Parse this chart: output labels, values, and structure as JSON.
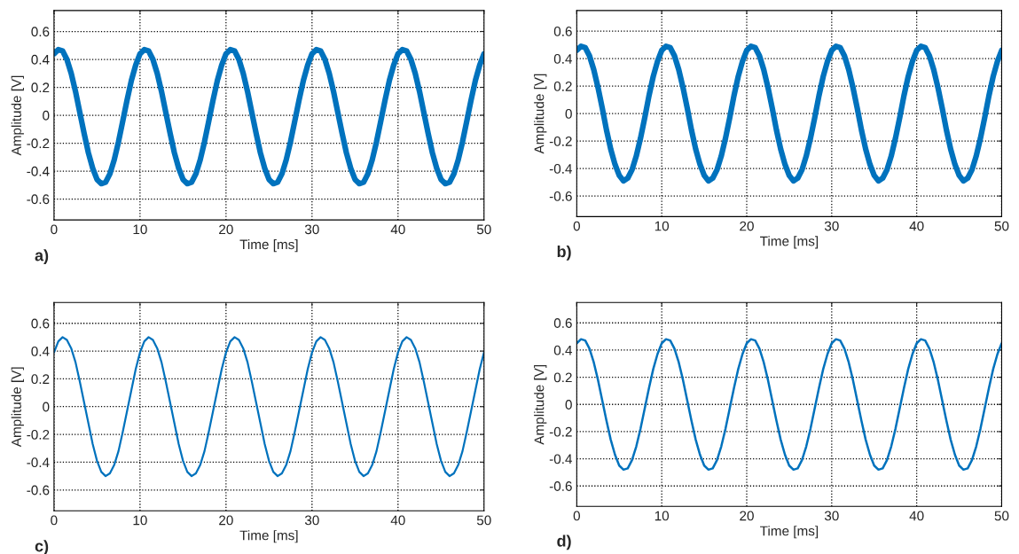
{
  "chart_data": [
    {
      "type": "line",
      "xlabel": "Time [ms]",
      "ylabel": "Amplitude [V]",
      "annotations": [
        "a)"
      ],
      "xlim": [
        0,
        50
      ],
      "ylim": [
        -0.75,
        0.75
      ],
      "xticks": [
        0,
        10,
        20,
        30,
        40,
        50
      ],
      "yticks": [
        -0.6,
        -0.4,
        -0.2,
        0,
        0.2,
        0.4,
        0.6
      ],
      "grid": true,
      "line_style": "solid",
      "x": [
        0,
        0.5,
        1,
        1.5,
        2,
        2.5,
        3,
        3.5,
        4,
        4.5,
        5,
        5.5,
        6,
        6.5,
        7,
        7.5,
        8,
        8.5,
        9,
        9.5,
        10,
        10.5,
        11,
        11.5,
        12,
        12.5,
        13,
        13.5,
        14,
        14.5,
        15,
        15.5,
        16,
        16.5,
        17,
        17.5,
        18,
        18.5,
        19,
        19.5,
        20,
        20.5,
        21,
        21.5,
        22,
        22.5,
        23,
        23.5,
        24,
        24.5,
        25,
        25.5,
        26,
        26.5,
        27,
        27.5,
        28,
        28.5,
        29,
        29.5,
        30,
        30.5,
        31,
        31.5,
        32,
        32.5,
        33,
        33.5,
        34,
        34.5,
        35,
        35.5,
        36,
        36.5,
        37,
        37.5,
        38,
        38.5,
        39,
        39.5,
        40,
        40.5,
        41,
        41.5,
        42,
        42.5,
        43,
        43.5,
        44,
        44.5,
        45,
        45.5,
        46,
        46.5,
        47,
        47.5,
        48,
        48.5,
        49,
        49.5,
        50
      ],
      "series": [
        {
          "color": "#0072bd",
          "values": [
            0.44,
            0.47,
            0.46,
            0.4,
            0.3,
            0.17,
            0.02,
            -0.13,
            -0.27,
            -0.38,
            -0.46,
            -0.49,
            -0.48,
            -0.42,
            -0.32,
            -0.19,
            -0.04,
            0.11,
            0.25,
            0.36,
            0.44,
            0.47,
            0.46,
            0.4,
            0.3,
            0.17,
            0.02,
            -0.13,
            -0.27,
            -0.38,
            -0.46,
            -0.49,
            -0.48,
            -0.42,
            -0.32,
            -0.19,
            -0.04,
            0.11,
            0.25,
            0.36,
            0.44,
            0.47,
            0.46,
            0.4,
            0.3,
            0.17,
            0.02,
            -0.13,
            -0.27,
            -0.38,
            -0.46,
            -0.49,
            -0.48,
            -0.42,
            -0.32,
            -0.19,
            -0.04,
            0.11,
            0.25,
            0.36,
            0.44,
            0.47,
            0.46,
            0.4,
            0.3,
            0.17,
            0.02,
            -0.13,
            -0.27,
            -0.38,
            -0.46,
            -0.49,
            -0.48,
            -0.42,
            -0.32,
            -0.19,
            -0.04,
            0.11,
            0.25,
            0.36,
            0.44,
            0.47,
            0.46,
            0.4,
            0.3,
            0.17,
            0.02,
            -0.13,
            -0.27,
            -0.38,
            -0.46,
            -0.49,
            -0.48,
            -0.42,
            -0.32,
            -0.19,
            -0.04,
            0.11,
            0.25,
            0.36,
            0.44
          ]
        }
      ]
    },
    {
      "type": "line",
      "xlabel": "Time [ms]",
      "ylabel": "Amplitude [V]",
      "annotations": [
        "b)"
      ],
      "xlim": [
        0,
        50
      ],
      "ylim": [
        -0.75,
        0.75
      ],
      "xticks": [
        0,
        10,
        20,
        30,
        40,
        50
      ],
      "yticks": [
        -0.6,
        -0.4,
        -0.2,
        0,
        0.2,
        0.4,
        0.6
      ],
      "grid": true,
      "line_style": "solid",
      "x": [
        0,
        0.5,
        1,
        1.5,
        2,
        2.5,
        3,
        3.5,
        4,
        4.5,
        5,
        5.5,
        6,
        6.5,
        7,
        7.5,
        8,
        8.5,
        9,
        9.5,
        10,
        10.5,
        11,
        11.5,
        12,
        12.5,
        13,
        13.5,
        14,
        14.5,
        15,
        15.5,
        16,
        16.5,
        17,
        17.5,
        18,
        18.5,
        19,
        19.5,
        20,
        20.5,
        21,
        21.5,
        22,
        22.5,
        23,
        23.5,
        24,
        24.5,
        25,
        25.5,
        26,
        26.5,
        27,
        27.5,
        28,
        28.5,
        29,
        29.5,
        30,
        30.5,
        31,
        31.5,
        32,
        32.5,
        33,
        33.5,
        34,
        34.5,
        35,
        35.5,
        36,
        36.5,
        37,
        37.5,
        38,
        38.5,
        39,
        39.5,
        40,
        40.5,
        41,
        41.5,
        42,
        42.5,
        43,
        43.5,
        44,
        44.5,
        45,
        45.5,
        46,
        46.5,
        47,
        47.5,
        48,
        48.5,
        49,
        49.5,
        50
      ],
      "series": [
        {
          "color": "#0072bd",
          "values": [
            0.46,
            0.49,
            0.48,
            0.42,
            0.32,
            0.19,
            0.04,
            -0.12,
            -0.26,
            -0.37,
            -0.45,
            -0.49,
            -0.47,
            -0.41,
            -0.31,
            -0.18,
            -0.03,
            0.13,
            0.27,
            0.38,
            0.46,
            0.49,
            0.48,
            0.42,
            0.32,
            0.19,
            0.04,
            -0.12,
            -0.26,
            -0.37,
            -0.45,
            -0.49,
            -0.47,
            -0.41,
            -0.31,
            -0.18,
            -0.03,
            0.13,
            0.27,
            0.38,
            0.46,
            0.49,
            0.48,
            0.42,
            0.32,
            0.19,
            0.04,
            -0.12,
            -0.26,
            -0.37,
            -0.45,
            -0.49,
            -0.47,
            -0.41,
            -0.31,
            -0.18,
            -0.03,
            0.13,
            0.27,
            0.38,
            0.46,
            0.49,
            0.48,
            0.42,
            0.32,
            0.19,
            0.04,
            -0.12,
            -0.26,
            -0.37,
            -0.45,
            -0.49,
            -0.47,
            -0.41,
            -0.31,
            -0.18,
            -0.03,
            0.13,
            0.27,
            0.38,
            0.46,
            0.49,
            0.48,
            0.42,
            0.32,
            0.19,
            0.04,
            -0.12,
            -0.26,
            -0.37,
            -0.45,
            -0.49,
            -0.47,
            -0.41,
            -0.31,
            -0.18,
            -0.03,
            0.13,
            0.27,
            0.38,
            0.46
          ]
        }
      ]
    },
    {
      "type": "line",
      "xlabel": "Time [ms]",
      "ylabel": "Amplitude [V]",
      "annotations": [
        "c)"
      ],
      "xlim": [
        0,
        50
      ],
      "ylim": [
        -0.75,
        0.75
      ],
      "xticks": [
        0,
        10,
        20,
        30,
        40,
        50
      ],
      "yticks": [
        -0.6,
        -0.4,
        -0.2,
        0,
        0.2,
        0.4,
        0.6
      ],
      "grid": true,
      "line_style": "solid",
      "x": [
        0,
        0.5,
        1,
        1.5,
        2,
        2.5,
        3,
        3.5,
        4,
        4.5,
        5,
        5.5,
        6,
        6.5,
        7,
        7.5,
        8,
        8.5,
        9,
        9.5,
        10,
        10.5,
        11,
        11.5,
        12,
        12.5,
        13,
        13.5,
        14,
        14.5,
        15,
        15.5,
        16,
        16.5,
        17,
        17.5,
        18,
        18.5,
        19,
        19.5,
        20,
        20.5,
        21,
        21.5,
        22,
        22.5,
        23,
        23.5,
        24,
        24.5,
        25,
        25.5,
        26,
        26.5,
        27,
        27.5,
        28,
        28.5,
        29,
        29.5,
        30,
        30.5,
        31,
        31.5,
        32,
        32.5,
        33,
        33.5,
        34,
        34.5,
        35,
        35.5,
        36,
        36.5,
        37,
        37.5,
        38,
        38.5,
        39,
        39.5,
        40,
        40.5,
        41,
        41.5,
        42,
        42.5,
        43,
        43.5,
        44,
        44.5,
        45,
        45.5,
        46,
        46.5,
        47,
        47.5,
        48,
        48.5,
        49,
        49.5,
        50
      ],
      "series": [
        {
          "color": "#0072bd",
          "values": [
            0.39,
            0.47,
            0.5,
            0.48,
            0.42,
            0.32,
            0.18,
            0.03,
            -0.12,
            -0.27,
            -0.39,
            -0.47,
            -0.5,
            -0.48,
            -0.42,
            -0.32,
            -0.18,
            -0.03,
            0.12,
            0.27,
            0.39,
            0.47,
            0.5,
            0.48,
            0.42,
            0.32,
            0.18,
            0.03,
            -0.12,
            -0.27,
            -0.39,
            -0.47,
            -0.5,
            -0.48,
            -0.42,
            -0.32,
            -0.18,
            -0.03,
            0.12,
            0.27,
            0.39,
            0.47,
            0.5,
            0.48,
            0.42,
            0.32,
            0.18,
            0.03,
            -0.12,
            -0.27,
            -0.39,
            -0.47,
            -0.5,
            -0.48,
            -0.42,
            -0.32,
            -0.18,
            -0.03,
            0.12,
            0.27,
            0.39,
            0.47,
            0.5,
            0.48,
            0.42,
            0.32,
            0.18,
            0.03,
            -0.12,
            -0.27,
            -0.39,
            -0.47,
            -0.5,
            -0.48,
            -0.42,
            -0.32,
            -0.18,
            -0.03,
            0.12,
            0.27,
            0.39,
            0.47,
            0.5,
            0.48,
            0.42,
            0.32,
            0.18,
            0.03,
            -0.12,
            -0.27,
            -0.39,
            -0.47,
            -0.5,
            -0.48,
            -0.42,
            -0.32,
            -0.18,
            -0.03,
            0.12,
            0.27,
            0.39
          ]
        }
      ]
    },
    {
      "type": "line",
      "xlabel": "Time [ms]",
      "ylabel": "Amplitude [V]",
      "annotations": [
        "d)"
      ],
      "xlim": [
        0,
        50
      ],
      "ylim": [
        -0.75,
        0.75
      ],
      "xticks": [
        0,
        10,
        20,
        30,
        40,
        50
      ],
      "yticks": [
        -0.6,
        -0.4,
        -0.2,
        0,
        0.2,
        0.4,
        0.6
      ],
      "grid": true,
      "line_style": "solid",
      "x": [
        0,
        0.5,
        1,
        1.5,
        2,
        2.5,
        3,
        3.5,
        4,
        4.5,
        5,
        5.5,
        6,
        6.5,
        7,
        7.5,
        8,
        8.5,
        9,
        9.5,
        10,
        10.5,
        11,
        11.5,
        12,
        12.5,
        13,
        13.5,
        14,
        14.5,
        15,
        15.5,
        16,
        16.5,
        17,
        17.5,
        18,
        18.5,
        19,
        19.5,
        20,
        20.5,
        21,
        21.5,
        22,
        22.5,
        23,
        23.5,
        24,
        24.5,
        25,
        25.5,
        26,
        26.5,
        27,
        27.5,
        28,
        28.5,
        29,
        29.5,
        30,
        30.5,
        31,
        31.5,
        32,
        32.5,
        33,
        33.5,
        34,
        34.5,
        35,
        35.5,
        36,
        36.5,
        37,
        37.5,
        38,
        38.5,
        39,
        39.5,
        40,
        40.5,
        41,
        41.5,
        42,
        42.5,
        43,
        43.5,
        44,
        44.5,
        45,
        45.5,
        46,
        46.5,
        47,
        47.5,
        48,
        48.5,
        49,
        49.5,
        50
      ],
      "series": [
        {
          "color": "#0072bd",
          "values": [
            0.45,
            0.48,
            0.47,
            0.41,
            0.31,
            0.18,
            0.03,
            -0.12,
            -0.26,
            -0.37,
            -0.45,
            -0.48,
            -0.47,
            -0.41,
            -0.31,
            -0.18,
            -0.03,
            0.12,
            0.26,
            0.37,
            0.45,
            0.48,
            0.47,
            0.41,
            0.31,
            0.18,
            0.03,
            -0.12,
            -0.26,
            -0.37,
            -0.45,
            -0.48,
            -0.47,
            -0.41,
            -0.31,
            -0.18,
            -0.03,
            0.12,
            0.26,
            0.37,
            0.45,
            0.48,
            0.47,
            0.41,
            0.31,
            0.18,
            0.03,
            -0.12,
            -0.26,
            -0.37,
            -0.45,
            -0.48,
            -0.47,
            -0.41,
            -0.31,
            -0.18,
            -0.03,
            0.12,
            0.26,
            0.37,
            0.45,
            0.48,
            0.47,
            0.41,
            0.31,
            0.18,
            0.03,
            -0.12,
            -0.26,
            -0.37,
            -0.45,
            -0.48,
            -0.47,
            -0.41,
            -0.31,
            -0.18,
            -0.03,
            0.12,
            0.26,
            0.37,
            0.45,
            0.48,
            0.47,
            0.41,
            0.31,
            0.18,
            0.03,
            -0.12,
            -0.26,
            -0.37,
            -0.45,
            -0.48,
            -0.47,
            -0.41,
            -0.31,
            -0.18,
            -0.03,
            0.12,
            0.26,
            0.37,
            0.45
          ]
        }
      ]
    }
  ]
}
